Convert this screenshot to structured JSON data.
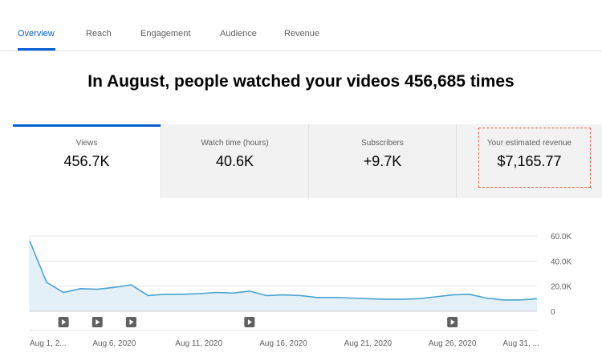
{
  "tabs": [
    {
      "label": "Overview",
      "active": true
    },
    {
      "label": "Reach",
      "active": false
    },
    {
      "label": "Engagement",
      "active": false
    },
    {
      "label": "Audience",
      "active": false
    },
    {
      "label": "Revenue",
      "active": false
    }
  ],
  "headline": "In August, people watched your videos 456,685 times",
  "metrics": [
    {
      "label": "Views",
      "value": "456.7K",
      "active": true
    },
    {
      "label": "Watch time (hours)",
      "value": "40.6K",
      "active": false
    },
    {
      "label": "Subscribers",
      "value": "+9.7K",
      "active": false
    },
    {
      "label": "Your estimated revenue",
      "value": "$7,165.77",
      "active": false,
      "highlighted": true
    }
  ],
  "colors": {
    "accent": "#065fd4",
    "line": "#4aa3cf",
    "area": "#e3f0f8",
    "highlight_border": "#e06a4e",
    "marker": "#606060"
  },
  "chart_data": {
    "type": "area",
    "series": [
      {
        "x": [
          "2020-08-01",
          "2020-08-02",
          "2020-08-03",
          "2020-08-04",
          "2020-08-05",
          "2020-08-06",
          "2020-08-07",
          "2020-08-08",
          "2020-08-09",
          "2020-08-10",
          "2020-08-11",
          "2020-08-12",
          "2020-08-13",
          "2020-08-14",
          "2020-08-15",
          "2020-08-16",
          "2020-08-17",
          "2020-08-18",
          "2020-08-19",
          "2020-08-20",
          "2020-08-21",
          "2020-08-22",
          "2020-08-23",
          "2020-08-24",
          "2020-08-25",
          "2020-08-26",
          "2020-08-27",
          "2020-08-28",
          "2020-08-29",
          "2020-08-30",
          "2020-08-31"
        ],
        "values": [
          56000,
          23000,
          15000,
          18000,
          17500,
          19000,
          21000,
          12500,
          13500,
          13500,
          14000,
          15000,
          14500,
          16000,
          12500,
          13000,
          12500,
          11000,
          11000,
          10500,
          10000,
          9500,
          9500,
          10000,
          11500,
          13000,
          13500,
          10500,
          9000,
          9000,
          10000
        ]
      }
    ],
    "ylim": [
      0,
      60000
    ],
    "yticks": [
      "60.0K",
      "40.0K",
      "20.0K",
      "0"
    ],
    "xtick_labels": [
      "Aug 1, 2...",
      "Aug 6, 2020",
      "Aug 11, 2020",
      "Aug 16, 2020",
      "Aug 21, 2020",
      "Aug 26, 2020",
      "Aug 31, ..."
    ],
    "xtick_days": [
      1,
      6,
      11,
      16,
      21,
      26,
      31
    ],
    "video_markers": [
      2,
      4,
      6,
      13,
      25
    ],
    "grid": true
  }
}
